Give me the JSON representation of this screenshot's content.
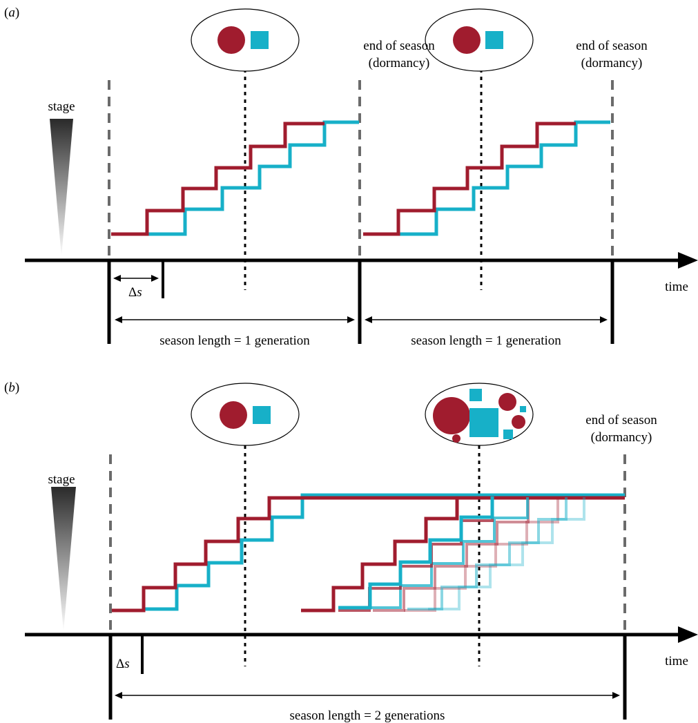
{
  "panel_a": {
    "label_open": "(",
    "label_letter": "a",
    "label_close": ")",
    "stage_label": "stage",
    "end_of_season_1": "end of season",
    "dormancy_1": "(dormancy)",
    "end_of_season_2": "end of season",
    "dormancy_2": "(dormancy)",
    "delta_symbol": "Δ",
    "delta_var": "s",
    "season_length_1": "season length = 1 generation",
    "season_length_2": "season length = 1 generation",
    "time_label": "time"
  },
  "panel_b": {
    "label_open": "(",
    "label_letter": "b",
    "label_close": ")",
    "stage_label": "stage",
    "end_of_season": "end of season",
    "dormancy": "(dormancy)",
    "delta_symbol": "Δ",
    "delta_var": "s",
    "season_length": "season length = 2 generations",
    "time_label": "time"
  },
  "colors": {
    "red": "#a01c2e",
    "cyan": "#17b0c8",
    "dash_gray": "#6b6b6b",
    "axis": "#000000"
  }
}
